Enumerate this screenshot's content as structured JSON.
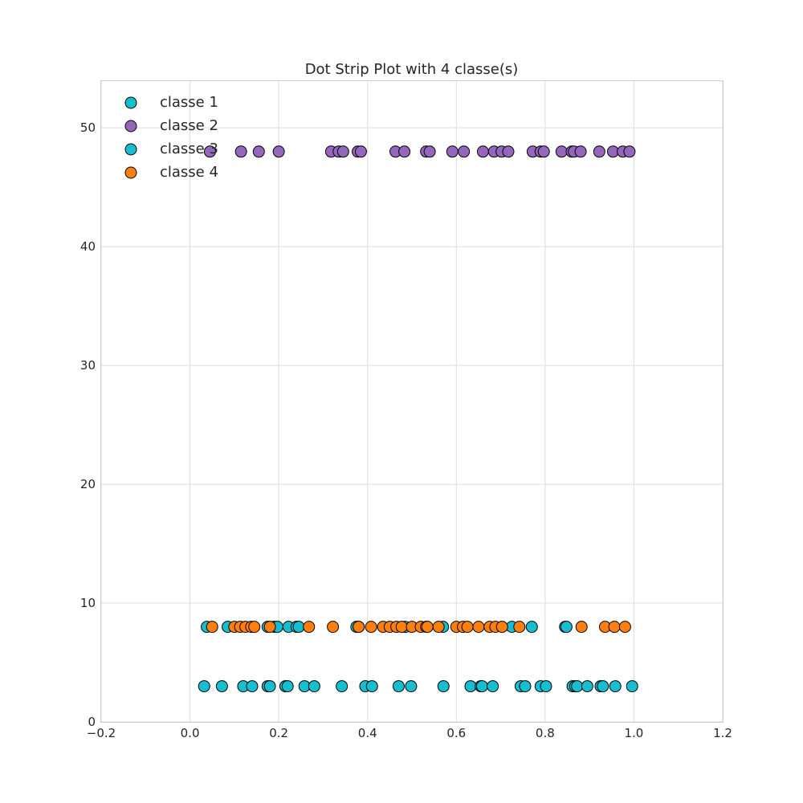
{
  "chart_data": {
    "type": "scatter",
    "title": "Dot Strip Plot with 4 classe(s)",
    "xlabel": "",
    "ylabel": "",
    "xlim": [
      -0.2,
      1.2
    ],
    "ylim": [
      0,
      54
    ],
    "x_ticks": [
      -0.2,
      0.0,
      0.2,
      0.4,
      0.6,
      0.8,
      1.0,
      1.2
    ],
    "x_tick_labels": [
      "−0.2",
      "0.0",
      "0.2",
      "0.4",
      "0.6",
      "0.8",
      "1.0",
      "1.2"
    ],
    "y_ticks": [
      0,
      10,
      20,
      30,
      40,
      50
    ],
    "y_tick_labels": [
      "0",
      "10",
      "20",
      "30",
      "40",
      "50"
    ],
    "grid": true,
    "legend_position": "top-left",
    "series": [
      {
        "name": "classe 1",
        "color": "#17becf",
        "y": 3,
        "x": [
          0.032,
          0.072,
          0.12,
          0.14,
          0.175,
          0.18,
          0.215,
          0.22,
          0.258,
          0.28,
          0.342,
          0.395,
          0.41,
          0.47,
          0.498,
          0.571,
          0.632,
          0.655,
          0.658,
          0.682,
          0.745,
          0.755,
          0.79,
          0.802,
          0.862,
          0.868,
          0.872,
          0.895,
          0.925,
          0.93,
          0.958,
          0.996
        ]
      },
      {
        "name": "classe 2",
        "color": "#9467bd",
        "y": 48,
        "x": [
          0.045,
          0.115,
          0.155,
          0.2,
          0.318,
          0.335,
          0.345,
          0.378,
          0.385,
          0.463,
          0.483,
          0.532,
          0.54,
          0.591,
          0.617,
          0.66,
          0.685,
          0.702,
          0.717,
          0.772,
          0.79,
          0.797,
          0.837,
          0.86,
          0.865,
          0.88,
          0.922,
          0.953,
          0.975,
          0.99
        ]
      },
      {
        "name": "classe 3",
        "color": "#17becf",
        "y": 8,
        "x": [
          0.038,
          0.085,
          0.175,
          0.19,
          0.197,
          0.222,
          0.24,
          0.245,
          0.375,
          0.38,
          0.485,
          0.57,
          0.725,
          0.77,
          0.845,
          0.848
        ]
      },
      {
        "name": "classe 4",
        "color": "#ff7f0e",
        "y": 8,
        "x": [
          0.05,
          0.1,
          0.113,
          0.125,
          0.138,
          0.145,
          0.18,
          0.268,
          0.322,
          0.38,
          0.408,
          0.435,
          0.45,
          0.465,
          0.477,
          0.5,
          0.52,
          0.532,
          0.535,
          0.56,
          0.6,
          0.615,
          0.625,
          0.65,
          0.675,
          0.688,
          0.703,
          0.742,
          0.882,
          0.935,
          0.956,
          0.98
        ]
      }
    ]
  }
}
